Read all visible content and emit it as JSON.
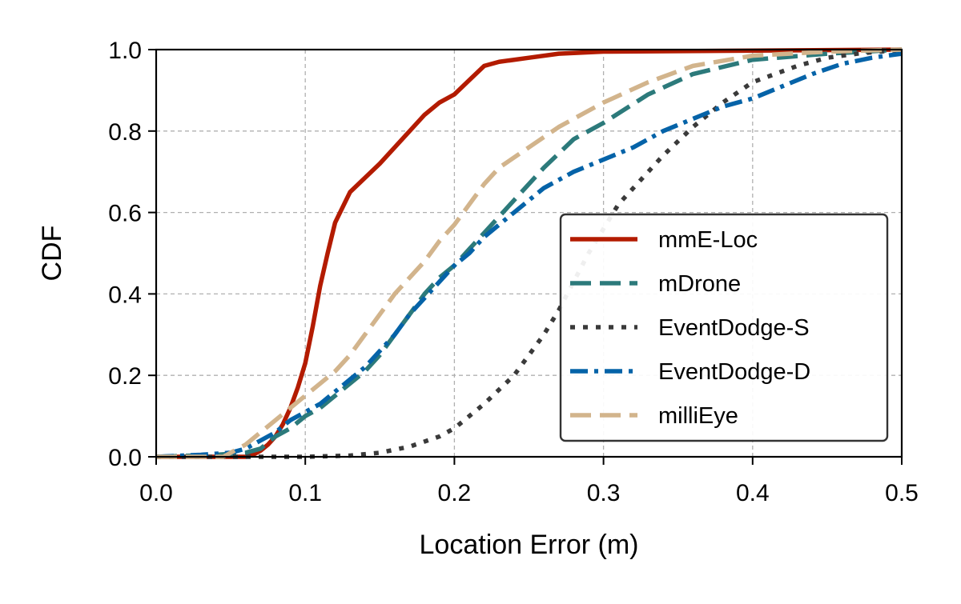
{
  "chart_data": {
    "type": "line",
    "title": "",
    "xlabel": "Location Error (m)",
    "ylabel": "CDF",
    "xlim": [
      0.0,
      0.5
    ],
    "ylim": [
      0.0,
      1.0
    ],
    "xticks": [
      "0.0",
      "0.1",
      "0.2",
      "0.3",
      "0.4",
      "0.5"
    ],
    "yticks": [
      "0.0",
      "0.2",
      "0.4",
      "0.6",
      "0.8",
      "1.0"
    ],
    "grid": true,
    "legend_position": "center-right",
    "series": [
      {
        "name": "mmE-Loc",
        "color": "#B31B00",
        "style": "solid",
        "x": [
          0.0,
          0.06,
          0.065,
          0.07,
          0.075,
          0.08,
          0.085,
          0.09,
          0.095,
          0.1,
          0.105,
          0.11,
          0.115,
          0.12,
          0.13,
          0.15,
          0.17,
          0.18,
          0.19,
          0.2,
          0.21,
          0.22,
          0.23,
          0.25,
          0.27,
          0.3,
          0.5
        ],
        "y": [
          0.0,
          0.0,
          0.005,
          0.015,
          0.03,
          0.05,
          0.08,
          0.12,
          0.17,
          0.23,
          0.32,
          0.42,
          0.5,
          0.575,
          0.65,
          0.72,
          0.8,
          0.84,
          0.87,
          0.89,
          0.925,
          0.96,
          0.97,
          0.98,
          0.99,
          0.995,
          1.0
        ]
      },
      {
        "name": "mDrone",
        "color": "#2C7A7B",
        "style": "dashed",
        "x": [
          0.0,
          0.04,
          0.06,
          0.07,
          0.08,
          0.09,
          0.1,
          0.11,
          0.12,
          0.13,
          0.14,
          0.15,
          0.16,
          0.17,
          0.18,
          0.19,
          0.2,
          0.21,
          0.22,
          0.24,
          0.26,
          0.28,
          0.3,
          0.33,
          0.36,
          0.4,
          0.45,
          0.5
        ],
        "y": [
          0.0,
          0.005,
          0.01,
          0.02,
          0.05,
          0.07,
          0.1,
          0.12,
          0.15,
          0.18,
          0.21,
          0.25,
          0.3,
          0.35,
          0.4,
          0.44,
          0.47,
          0.51,
          0.55,
          0.63,
          0.71,
          0.78,
          0.82,
          0.89,
          0.94,
          0.975,
          0.99,
          1.0
        ]
      },
      {
        "name": "EventDodge-S",
        "color": "#3A3A3A",
        "style": "dotted",
        "x": [
          0.0,
          0.07,
          0.1,
          0.13,
          0.15,
          0.17,
          0.19,
          0.2,
          0.22,
          0.24,
          0.26,
          0.27,
          0.28,
          0.29,
          0.3,
          0.31,
          0.32,
          0.34,
          0.36,
          0.38,
          0.4,
          0.43,
          0.45,
          0.47,
          0.5
        ],
        "y": [
          0.0,
          0.0,
          0.0,
          0.003,
          0.01,
          0.025,
          0.05,
          0.07,
          0.13,
          0.2,
          0.3,
          0.36,
          0.43,
          0.5,
          0.56,
          0.62,
          0.66,
          0.74,
          0.81,
          0.87,
          0.92,
          0.96,
          0.98,
          0.99,
          1.0
        ]
      },
      {
        "name": "EventDodge-D",
        "color": "#0563A8",
        "style": "dashdot",
        "x": [
          0.0,
          0.03,
          0.05,
          0.06,
          0.07,
          0.08,
          0.09,
          0.1,
          0.11,
          0.12,
          0.13,
          0.14,
          0.15,
          0.16,
          0.17,
          0.18,
          0.19,
          0.2,
          0.21,
          0.22,
          0.24,
          0.26,
          0.28,
          0.3,
          0.32,
          0.34,
          0.36,
          0.38,
          0.4,
          0.42,
          0.44,
          0.46,
          0.48,
          0.5
        ],
        "y": [
          0.0,
          0.005,
          0.01,
          0.02,
          0.04,
          0.06,
          0.09,
          0.11,
          0.13,
          0.16,
          0.19,
          0.22,
          0.26,
          0.3,
          0.35,
          0.39,
          0.43,
          0.47,
          0.5,
          0.54,
          0.6,
          0.66,
          0.7,
          0.73,
          0.76,
          0.8,
          0.83,
          0.86,
          0.88,
          0.91,
          0.94,
          0.965,
          0.98,
          0.99
        ]
      },
      {
        "name": "milliEye",
        "color": "#D2B48C",
        "style": "dashed",
        "x": [
          0.0,
          0.03,
          0.045,
          0.05,
          0.06,
          0.07,
          0.08,
          0.09,
          0.1,
          0.11,
          0.12,
          0.13,
          0.14,
          0.15,
          0.16,
          0.17,
          0.18,
          0.19,
          0.2,
          0.21,
          0.22,
          0.23,
          0.25,
          0.27,
          0.3,
          0.33,
          0.36,
          0.4,
          0.45,
          0.5
        ],
        "y": [
          0.0,
          0.0,
          0.0,
          0.01,
          0.03,
          0.06,
          0.09,
          0.12,
          0.15,
          0.18,
          0.21,
          0.25,
          0.3,
          0.35,
          0.4,
          0.44,
          0.48,
          0.53,
          0.57,
          0.62,
          0.67,
          0.71,
          0.76,
          0.81,
          0.87,
          0.92,
          0.96,
          0.985,
          0.995,
          1.0
        ]
      }
    ]
  }
}
